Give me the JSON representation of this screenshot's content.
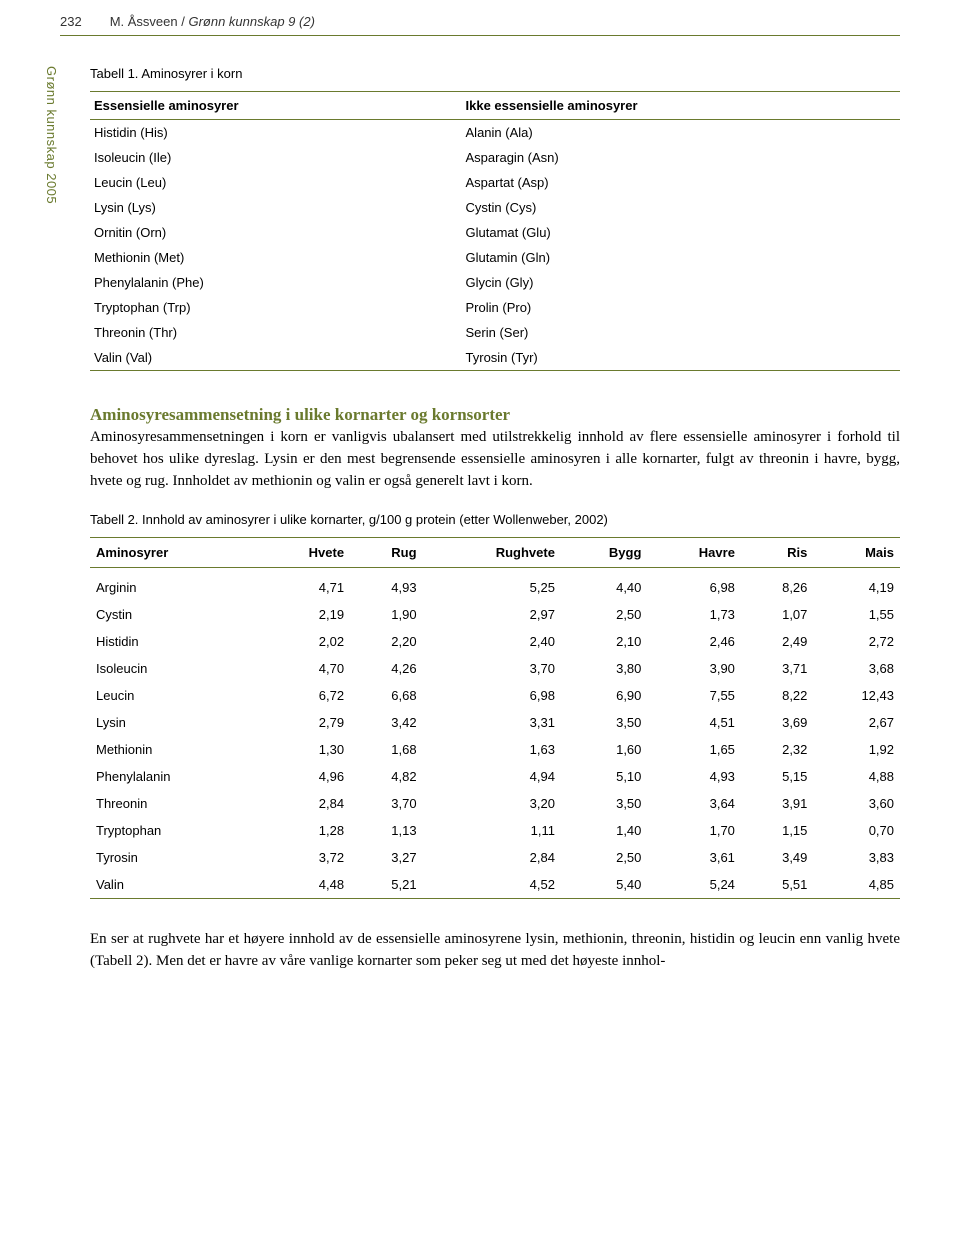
{
  "header": {
    "page_number": "232",
    "author": "M. Åssveen",
    "journal_sep": " / ",
    "journal": "Grønn kunnskap 9 (2)",
    "rule_color": "#6a7a2e"
  },
  "side_label": "Grønn kunnskap 2005",
  "table1": {
    "caption": "Tabell 1. Aminosyrer i korn",
    "header_left": "Essensielle aminosyrer",
    "header_right": "Ikke essensielle aminosyrer",
    "rows": [
      {
        "l": "Histidin (His)",
        "r": "Alanin (Ala)"
      },
      {
        "l": "Isoleucin (Ile)",
        "r": "Asparagin (Asn)"
      },
      {
        "l": "Leucin (Leu)",
        "r": "Aspartat (Asp)"
      },
      {
        "l": "Lysin (Lys)",
        "r": "Cystin (Cys)"
      },
      {
        "l": "Ornitin (Orn)",
        "r": "Glutamat (Glu)"
      },
      {
        "l": "Methionin (Met)",
        "r": "Glutamin (Gln)"
      },
      {
        "l": "Phenylalanin (Phe)",
        "r": "Glycin (Gly)"
      },
      {
        "l": "Tryptophan (Trp)",
        "r": "Prolin (Pro)"
      },
      {
        "l": "Threonin (Thr)",
        "r": "Serin (Ser)"
      },
      {
        "l": "Valin (Val)",
        "r": "Tyrosin (Tyr)"
      }
    ]
  },
  "section_heading": "Aminosyresammensetning i ulike kornarter og kornsorter",
  "body_para_1": "Aminosyresammensetningen i korn er vanligvis ubalansert med utilstrekkelig innhold av flere essensielle aminosyrer i forhold til behovet hos ulike dyreslag. Lysin er den mest begrensende essensielle aminosyren i alle kornarter, fulgt av threonin i havre, bygg, hvete og rug. Innholdet av methionin og valin er også generelt lavt i korn.",
  "table2": {
    "caption": "Tabell 2. Innhold av aminosyrer i ulike kornarter, g/100 g protein (etter Wollenweber, 2002)",
    "columns": [
      "Aminosyrer",
      "Hvete",
      "Rug",
      "Rughvete",
      "Bygg",
      "Havre",
      "Ris",
      "Mais"
    ],
    "rows": [
      [
        "Arginin",
        "4,71",
        "4,93",
        "5,25",
        "4,40",
        "6,98",
        "8,26",
        "4,19"
      ],
      [
        "Cystin",
        "2,19",
        "1,90",
        "2,97",
        "2,50",
        "1,73",
        "1,07",
        "1,55"
      ],
      [
        "Histidin",
        "2,02",
        "2,20",
        "2,40",
        "2,10",
        "2,46",
        "2,49",
        "2,72"
      ],
      [
        "Isoleucin",
        "4,70",
        "4,26",
        "3,70",
        "3,80",
        "3,90",
        "3,71",
        "3,68"
      ],
      [
        "Leucin",
        "6,72",
        "6,68",
        "6,98",
        "6,90",
        "7,55",
        "8,22",
        "12,43"
      ],
      [
        "Lysin",
        "2,79",
        "3,42",
        "3,31",
        "3,50",
        "4,51",
        "3,69",
        "2,67"
      ],
      [
        "Methionin",
        "1,30",
        "1,68",
        "1,63",
        "1,60",
        "1,65",
        "2,32",
        "1,92"
      ],
      [
        "Phenylalanin",
        "4,96",
        "4,82",
        "4,94",
        "5,10",
        "4,93",
        "5,15",
        "4,88"
      ],
      [
        "Threonin",
        "2,84",
        "3,70",
        "3,20",
        "3,50",
        "3,64",
        "3,91",
        "3,60"
      ],
      [
        "Tryptophan",
        "1,28",
        "1,13",
        "1,11",
        "1,40",
        "1,70",
        "1,15",
        "0,70"
      ],
      [
        "Tyrosin",
        "3,72",
        "3,27",
        "2,84",
        "2,50",
        "3,61",
        "3,49",
        "3,83"
      ],
      [
        "Valin",
        "4,48",
        "5,21",
        "4,52",
        "5,40",
        "5,24",
        "5,51",
        "4,85"
      ]
    ]
  },
  "body_para_2": "En ser at rughvete har et høyere innhold av de essensielle aminosyrene lysin, methionin, threonin, histidin og leucin enn vanlig hvete (Tabell 2). Men det er havre av våre vanlige kornarter som peker seg ut med det høyeste innhol-",
  "colors": {
    "accent": "#6a7a2e",
    "text": "#000000",
    "bg": "#ffffff"
  },
  "fonts": {
    "body": "Georgia",
    "ui": "Arial"
  }
}
